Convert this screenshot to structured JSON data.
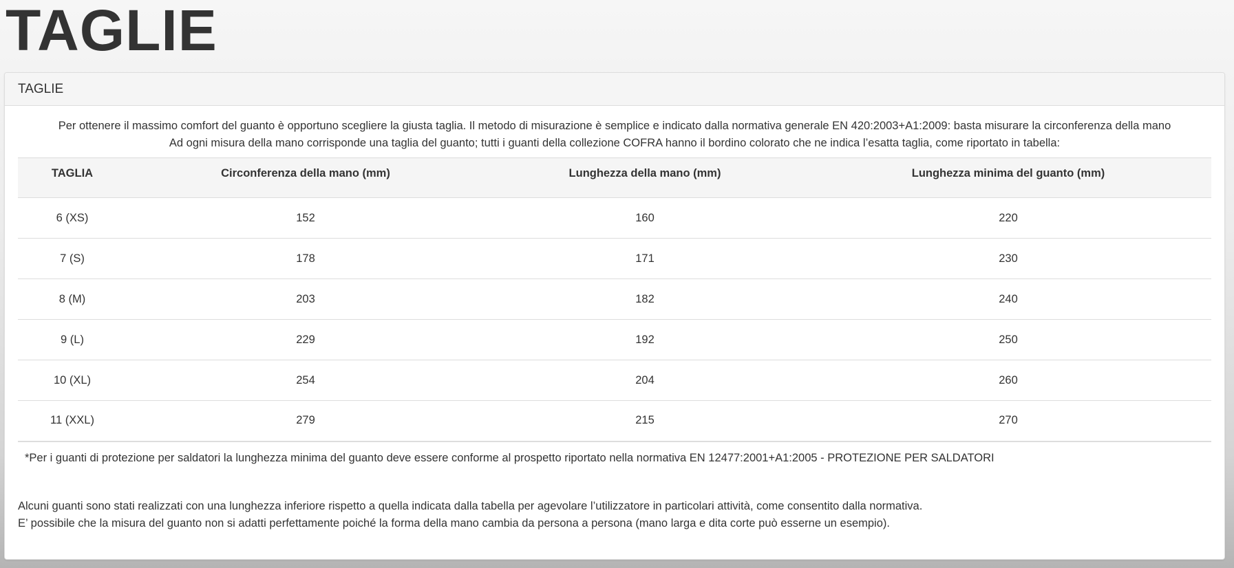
{
  "page_title": "TAGLIE",
  "panel": {
    "heading": "TAGLIE",
    "intro_lines": [
      "Per ottenere il massimo comfort del guanto è opportuno scegliere la giusta taglia. Il metodo di misurazione è semplice e indicato dalla normativa generale EN 420:2003+A1:2009: basta misurare la circonferenza della mano",
      "Ad ogni misura della mano corrisponde una taglia del guanto; tutti i guanti della collezione COFRA hanno il bordino colorato che ne indica l’esatta taglia, come riportato in tabella:"
    ],
    "table": {
      "headers": [
        "TAGLIA",
        "Circonferenza della mano (mm)",
        "Lunghezza della mano (mm)",
        "Lunghezza minima del guanto (mm)"
      ],
      "rows": [
        [
          "6 (XS)",
          "152",
          "160",
          "220"
        ],
        [
          "7 (S)",
          "178",
          "171",
          "230"
        ],
        [
          "8 (M)",
          "203",
          "182",
          "240"
        ],
        [
          "9 (L)",
          "229",
          "192",
          "250"
        ],
        [
          "10 (XL)",
          "254",
          "204",
          "260"
        ],
        [
          "11 (XXL)",
          "279",
          "215",
          "270"
        ]
      ]
    },
    "footnote": "*Per i guanti di protezione per saldatori la lunghezza minima del guanto deve essere conforme al prospetto riportato nella normativa EN 12477:2001+A1:2005 - PROTEZIONE PER SALDATORI",
    "notes": [
      "Alcuni guanti sono stati realizzati con una lunghezza inferiore rispetto a quella indicata dalla tabella per agevolare l’utilizzatore in particolari attività, come consentito dalla normativa.",
      "E’ possibile che la misura del guanto non si adatti perfettamente poiché la forma della mano cambia da persona a persona (mano larga e dita corte può esserne un esempio)."
    ]
  }
}
